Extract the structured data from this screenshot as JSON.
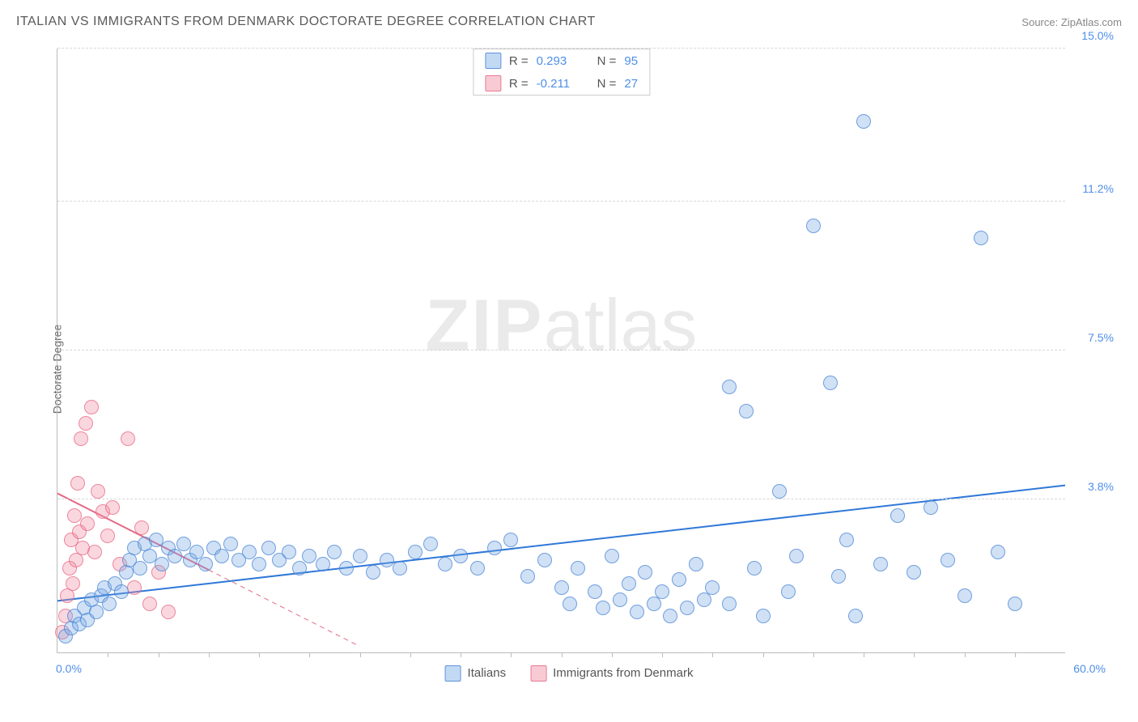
{
  "title": "ITALIAN VS IMMIGRANTS FROM DENMARK DOCTORATE DEGREE CORRELATION CHART",
  "source_label": "Source:",
  "source_value": "ZipAtlas.com",
  "yaxis_label": "Doctorate Degree",
  "watermark_bold": "ZIP",
  "watermark_light": "atlas",
  "chart": {
    "type": "scatter",
    "xlim": [
      0,
      60
    ],
    "ylim": [
      0,
      15
    ],
    "x_ticks_minor_step": 3,
    "y_grid_values": [
      3.8,
      7.5,
      11.2,
      15.0
    ],
    "y_grid_labels": [
      "3.8%",
      "7.5%",
      "11.2%",
      "15.0%"
    ],
    "x_min_label": "0.0%",
    "x_max_label": "60.0%",
    "background_color": "#ffffff",
    "grid_color": "#d8d8d8",
    "axis_color": "#bbbbbb",
    "label_color": "#4f8fe8",
    "legend_top": [
      {
        "color": "blue",
        "r_label": "R =",
        "r_value": "0.293",
        "n_label": "N =",
        "n_value": "95"
      },
      {
        "color": "pink",
        "r_label": "R =",
        "r_value": "-0.211",
        "n_label": "N =",
        "n_value": "27"
      }
    ],
    "legend_bottom": [
      {
        "color": "blue",
        "label": "Italians"
      },
      {
        "color": "pink",
        "label": "Immigrants from Denmark"
      }
    ],
    "trend_lines": {
      "blue_solid": {
        "x1": 0,
        "y1": 1.28,
        "x2": 60,
        "y2": 4.15,
        "color": "#2f78d8",
        "width": 2,
        "dash": null
      },
      "pink_solid": {
        "x1": 0,
        "y1": 3.95,
        "x2": 9,
        "y2": 2.05,
        "color": "#e46a87",
        "width": 2,
        "dash": null
      },
      "pink_dashed": {
        "x1": 9,
        "y1": 2.05,
        "x2": 18,
        "y2": 0.15,
        "color": "#e46a87",
        "width": 1,
        "dash": "6,5"
      }
    },
    "series": {
      "blue": {
        "marker_size": 18,
        "fill": "rgba(120,170,230,0.35)",
        "stroke": "rgba(70,130,210,0.7)",
        "points": [
          [
            0.5,
            0.4
          ],
          [
            0.8,
            0.6
          ],
          [
            1.0,
            0.9
          ],
          [
            1.3,
            0.7
          ],
          [
            1.6,
            1.1
          ],
          [
            1.8,
            0.8
          ],
          [
            2.0,
            1.3
          ],
          [
            2.3,
            1.0
          ],
          [
            2.6,
            1.4
          ],
          [
            2.8,
            1.6
          ],
          [
            3.1,
            1.2
          ],
          [
            3.4,
            1.7
          ],
          [
            3.8,
            1.5
          ],
          [
            4.1,
            2.0
          ],
          [
            4.3,
            2.3
          ],
          [
            4.6,
            2.6
          ],
          [
            4.9,
            2.1
          ],
          [
            5.2,
            2.7
          ],
          [
            5.5,
            2.4
          ],
          [
            5.9,
            2.8
          ],
          [
            6.2,
            2.2
          ],
          [
            6.6,
            2.6
          ],
          [
            7.0,
            2.4
          ],
          [
            7.5,
            2.7
          ],
          [
            7.9,
            2.3
          ],
          [
            8.3,
            2.5
          ],
          [
            8.8,
            2.2
          ],
          [
            9.3,
            2.6
          ],
          [
            9.8,
            2.4
          ],
          [
            10.3,
            2.7
          ],
          [
            10.8,
            2.3
          ],
          [
            11.4,
            2.5
          ],
          [
            12.0,
            2.2
          ],
          [
            12.6,
            2.6
          ],
          [
            13.2,
            2.3
          ],
          [
            13.8,
            2.5
          ],
          [
            14.4,
            2.1
          ],
          [
            15.0,
            2.4
          ],
          [
            15.8,
            2.2
          ],
          [
            16.5,
            2.5
          ],
          [
            17.2,
            2.1
          ],
          [
            18.0,
            2.4
          ],
          [
            18.8,
            2.0
          ],
          [
            19.6,
            2.3
          ],
          [
            20.4,
            2.1
          ],
          [
            21.3,
            2.5
          ],
          [
            22.2,
            2.7
          ],
          [
            23.1,
            2.2
          ],
          [
            24.0,
            2.4
          ],
          [
            25.0,
            2.1
          ],
          [
            26.0,
            2.6
          ],
          [
            27.0,
            2.8
          ],
          [
            28.0,
            1.9
          ],
          [
            29.0,
            2.3
          ],
          [
            30.0,
            1.6
          ],
          [
            30.5,
            1.2
          ],
          [
            31.0,
            2.1
          ],
          [
            32.0,
            1.5
          ],
          [
            32.5,
            1.1
          ],
          [
            33.0,
            2.4
          ],
          [
            33.5,
            1.3
          ],
          [
            34.0,
            1.7
          ],
          [
            34.5,
            1.0
          ],
          [
            35.0,
            2.0
          ],
          [
            35.5,
            1.2
          ],
          [
            36.0,
            1.5
          ],
          [
            36.5,
            0.9
          ],
          [
            37.0,
            1.8
          ],
          [
            37.5,
            1.1
          ],
          [
            38.0,
            2.2
          ],
          [
            38.5,
            1.3
          ],
          [
            39.0,
            1.6
          ],
          [
            40.0,
            6.6
          ],
          [
            40.0,
            1.2
          ],
          [
            41.0,
            6.0
          ],
          [
            41.5,
            2.1
          ],
          [
            42.0,
            0.9
          ],
          [
            43.0,
            4.0
          ],
          [
            43.5,
            1.5
          ],
          [
            44.0,
            2.4
          ],
          [
            45.0,
            10.6
          ],
          [
            46.0,
            6.7
          ],
          [
            46.5,
            1.9
          ],
          [
            47.0,
            2.8
          ],
          [
            47.5,
            0.9
          ],
          [
            48.0,
            13.2
          ],
          [
            49.0,
            2.2
          ],
          [
            50.0,
            3.4
          ],
          [
            51.0,
            2.0
          ],
          [
            52.0,
            3.6
          ],
          [
            53.0,
            2.3
          ],
          [
            54.0,
            1.4
          ],
          [
            55.0,
            10.3
          ],
          [
            56.0,
            2.5
          ],
          [
            57.0,
            1.2
          ]
        ]
      },
      "pink": {
        "marker_size": 18,
        "fill": "rgba(240,140,160,0.35)",
        "stroke": "rgba(230,100,130,0.7)",
        "points": [
          [
            0.3,
            0.5
          ],
          [
            0.5,
            0.9
          ],
          [
            0.6,
            1.4
          ],
          [
            0.7,
            2.1
          ],
          [
            0.8,
            2.8
          ],
          [
            0.9,
            1.7
          ],
          [
            1.0,
            3.4
          ],
          [
            1.1,
            2.3
          ],
          [
            1.2,
            4.2
          ],
          [
            1.3,
            3.0
          ],
          [
            1.4,
            5.3
          ],
          [
            1.5,
            2.6
          ],
          [
            1.7,
            5.7
          ],
          [
            1.8,
            3.2
          ],
          [
            2.0,
            6.1
          ],
          [
            2.2,
            2.5
          ],
          [
            2.4,
            4.0
          ],
          [
            2.7,
            3.5
          ],
          [
            3.0,
            2.9
          ],
          [
            3.3,
            3.6
          ],
          [
            3.7,
            2.2
          ],
          [
            4.2,
            5.3
          ],
          [
            4.6,
            1.6
          ],
          [
            5.0,
            3.1
          ],
          [
            5.5,
            1.2
          ],
          [
            6.0,
            2.0
          ],
          [
            6.6,
            1.0
          ]
        ]
      }
    }
  }
}
